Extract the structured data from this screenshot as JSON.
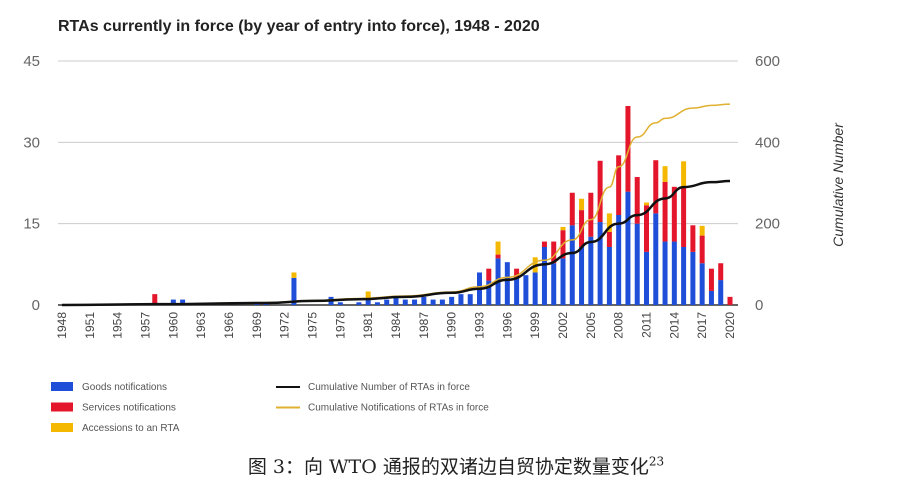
{
  "chart_data": {
    "type": "bar",
    "title": "RTAs currently in force (by year of entry into force), 1948 - 2020",
    "ylabel": "",
    "y2label": "Cumulative Number",
    "ylim": [
      0,
      45
    ],
    "y2lim": [
      0,
      600
    ],
    "yticks": [
      "0",
      "15",
      "30",
      "45"
    ],
    "y2ticks": [
      "0",
      "200",
      "400",
      "600"
    ],
    "xticks": [
      "1948",
      "1951",
      "1954",
      "1957",
      "1960",
      "1963",
      "1966",
      "1969",
      "1972",
      "1975",
      "1978",
      "1981",
      "1984",
      "1987",
      "1990",
      "1993",
      "1996",
      "1999",
      "2002",
      "2005",
      "2008",
      "2011",
      "2014",
      "2017",
      "2020"
    ],
    "grid": true,
    "stacked": true,
    "legend_placement": "bottom",
    "x_start": 1948,
    "series": [
      {
        "name": "Goods notifications",
        "color": "#1f4fd8",
        "axis": "left",
        "values": [
          0,
          0,
          0,
          0,
          0,
          0,
          0,
          0,
          0,
          0,
          0,
          0,
          1,
          1,
          0,
          0,
          0,
          0,
          0,
          0,
          0,
          0.5,
          0.5,
          0,
          0,
          5,
          0,
          0,
          0,
          1.5,
          0.5,
          0,
          0.5,
          1,
          0.5,
          1,
          1.5,
          1,
          1,
          1.5,
          1,
          1,
          1.5,
          2,
          2,
          6,
          4.5,
          8.6,
          7.9,
          5,
          5.5,
          6,
          10.7,
          7.7,
          8.6,
          14.7,
          10.7,
          12.6,
          15.3,
          10.7,
          16.6,
          20.9,
          15,
          9.8,
          16.9,
          11.7,
          11.7,
          10.7,
          9.8,
          7.7,
          2.6,
          4.6,
          0
        ]
      },
      {
        "name": "Services notifications",
        "color": "#e3162b",
        "axis": "left",
        "values": [
          0,
          0,
          0,
          0,
          0,
          0,
          0,
          0,
          0,
          0,
          2,
          0,
          0,
          0,
          0,
          0,
          0,
          0,
          0,
          0,
          0,
          0,
          0,
          0,
          0,
          0,
          0,
          0,
          0,
          0,
          0,
          0,
          0,
          0,
          0,
          0,
          0,
          0,
          0,
          0,
          0,
          0,
          0,
          0,
          0,
          0,
          2.2,
          0.7,
          0,
          1.7,
          0,
          0,
          1,
          4,
          5.2,
          6,
          6.8,
          8.1,
          11.3,
          2.8,
          11,
          15.8,
          8.6,
          8.6,
          9.8,
          11,
          10.1,
          10.9,
          4.9,
          5.1,
          4.1,
          3.1,
          1.5
        ]
      },
      {
        "name": "Accessions to an RTA",
        "color": "#f5b800",
        "axis": "left",
        "values": [
          0,
          0,
          0,
          0,
          0,
          0,
          0,
          0,
          0,
          0,
          0,
          0,
          0,
          0,
          0,
          0,
          0,
          0,
          0,
          0,
          0,
          0,
          0,
          0,
          0,
          1,
          0,
          0,
          0,
          0,
          0,
          0,
          0,
          1.5,
          0,
          0,
          0,
          0,
          0,
          0,
          0,
          0,
          0,
          0,
          0,
          0,
          0,
          2.4,
          0,
          0,
          0,
          2.8,
          0,
          0,
          0.6,
          0,
          2.1,
          0,
          0,
          3.4,
          0,
          0,
          0,
          0.5,
          0,
          2.9,
          0,
          4.9,
          0,
          1.8,
          0,
          0,
          0
        ]
      },
      {
        "name": "Cumulative Number of RTAs in force",
        "color": "#111111",
        "axis": "right",
        "type": "line",
        "points": [
          [
            1948,
            0
          ],
          [
            1958,
            2
          ],
          [
            1970,
            5
          ],
          [
            1975,
            10
          ],
          [
            1980,
            14
          ],
          [
            1985,
            20
          ],
          [
            1990,
            30
          ],
          [
            1993,
            40
          ],
          [
            1996,
            62
          ],
          [
            2000,
            100
          ],
          [
            2003,
            128
          ],
          [
            2005,
            155
          ],
          [
            2008,
            200
          ],
          [
            2010,
            221
          ],
          [
            2013,
            262
          ],
          [
            2015,
            290
          ],
          [
            2018,
            302
          ],
          [
            2020,
            305
          ]
        ]
      },
      {
        "name": "Cumulative Notifications of RTAs in force",
        "color": "#e0b030",
        "axis": "right",
        "type": "line",
        "points": [
          [
            1948,
            0
          ],
          [
            1958,
            2
          ],
          [
            1970,
            6
          ],
          [
            1975,
            11
          ],
          [
            1980,
            16
          ],
          [
            1985,
            22
          ],
          [
            1990,
            32
          ],
          [
            1993,
            45
          ],
          [
            1996,
            68
          ],
          [
            2000,
            110
          ],
          [
            2003,
            160
          ],
          [
            2005,
            210
          ],
          [
            2007,
            290
          ],
          [
            2008,
            340
          ],
          [
            2010,
            413
          ],
          [
            2012,
            448
          ],
          [
            2013,
            459
          ],
          [
            2016,
            484
          ],
          [
            2018,
            491
          ],
          [
            2020,
            494
          ]
        ]
      }
    ]
  },
  "caption": {
    "text": "图 3：向 WTO 通报的双诸边自贸协定数量变化",
    "sup": "23"
  }
}
